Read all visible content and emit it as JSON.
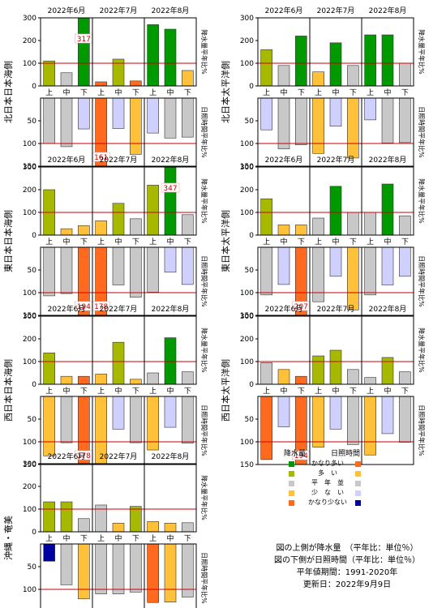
{
  "months": [
    "2022年6月",
    "2022年7月",
    "2022年8月"
  ],
  "dekads": [
    "上",
    "中",
    "下"
  ],
  "axis_labels": {
    "precip": "降水量平年比%",
    "sun": "日照時間平年比%"
  },
  "colors": {
    "much_above": "#009900",
    "above": "#a7b800",
    "normal": "#c8c8c8",
    "below": "#ffc13a",
    "much_below": "#ff6a1e",
    "sun_much_below": "#0000a0",
    "sun_below": "#d0d0ff",
    "ref_line": "#cc0000",
    "overflow_label": "#cc0000"
  },
  "chart_data": [
    {
      "region": "北日本日本海側",
      "type": "bar",
      "categories": [
        "6月上",
        "6月中",
        "6月下",
        "7月上",
        "7月中",
        "7月下",
        "8月上",
        "8月中",
        "8月下"
      ],
      "series": [
        {
          "name": "降水量",
          "values": [
            110,
            58,
            317,
            18,
            118,
            22,
            270,
            250,
            68
          ],
          "classes": [
            "above",
            "normal",
            "much_above",
            "much_below",
            "above",
            "much_below",
            "much_above",
            "much_above",
            "below"
          ]
        },
        {
          "name": "日照時間",
          "values": [
            100,
            107,
            68,
            161,
            67,
            124,
            77,
            88,
            86
          ],
          "classes": [
            "normal",
            "normal",
            "sun_below",
            "much_below",
            "sun_below",
            "below",
            "sun_below",
            "normal",
            "normal"
          ]
        }
      ],
      "ylim_precip": [
        0,
        300
      ],
      "ylim_sun": [
        0,
        150
      ]
    },
    {
      "region": "北日本太平洋側",
      "type": "bar",
      "categories": [
        "6月上",
        "6月中",
        "6月下",
        "7月上",
        "7月中",
        "7月下",
        "8月上",
        "8月中",
        "8月下"
      ],
      "series": [
        {
          "name": "降水量",
          "values": [
            160,
            90,
            220,
            62,
            190,
            90,
            225,
            225,
            100
          ],
          "classes": [
            "above",
            "normal",
            "much_above",
            "below",
            "much_above",
            "normal",
            "much_above",
            "much_above",
            "normal"
          ]
        },
        {
          "name": "日照時間",
          "values": [
            70,
            112,
            103,
            122,
            62,
            132,
            48,
            99,
            98
          ],
          "classes": [
            "sun_below",
            "normal",
            "normal",
            "below",
            "sun_below",
            "below",
            "sun_below",
            "normal",
            "normal"
          ]
        }
      ],
      "ylim_precip": [
        0,
        300
      ],
      "ylim_sun": [
        0,
        150
      ]
    },
    {
      "region": "東日本日本海側",
      "type": "bar",
      "categories": [
        "6月上",
        "6月中",
        "6月下",
        "7月上",
        "7月中",
        "7月下",
        "8月上",
        "8月中",
        "8月下"
      ],
      "series": [
        {
          "name": "降水量",
          "values": [
            200,
            28,
            42,
            63,
            140,
            72,
            220,
            347,
            90
          ],
          "classes": [
            "above",
            "below",
            "below",
            "below",
            "above",
            "normal",
            "above",
            "much_above",
            "normal"
          ]
        },
        {
          "name": "日照時間",
          "values": [
            107,
            102,
            194,
            178,
            83,
            110,
            99,
            55,
            82
          ],
          "classes": [
            "normal",
            "normal",
            "much_below",
            "much_below",
            "normal",
            "normal",
            "normal",
            "sun_below",
            "sun_below"
          ]
        }
      ],
      "ylim_precip": [
        0,
        300
      ],
      "ylim_sun": [
        0,
        150
      ]
    },
    {
      "region": "東日本太平洋側",
      "type": "bar",
      "categories": [
        "6月上",
        "6月中",
        "6月下",
        "7月上",
        "7月中",
        "7月下",
        "8月上",
        "8月中",
        "8月下"
      ],
      "series": [
        {
          "name": "降水量",
          "values": [
            160,
            45,
            45,
            75,
            215,
            100,
            100,
            225,
            85
          ],
          "classes": [
            "above",
            "below",
            "below",
            "normal",
            "much_above",
            "normal",
            "normal",
            "much_above",
            "normal"
          ]
        },
        {
          "name": "日照時間",
          "values": [
            105,
            82,
            207,
            120,
            64,
            138,
            105,
            83,
            64
          ],
          "classes": [
            "normal",
            "sun_below",
            "much_below",
            "normal",
            "sun_below",
            "below",
            "normal",
            "sun_below",
            "sun_below"
          ]
        }
      ],
      "ylim_precip": [
        0,
        300
      ],
      "ylim_sun": [
        0,
        150
      ]
    },
    {
      "region": "西日本日本海側",
      "type": "bar",
      "categories": [
        "6月上",
        "6月中",
        "6月下",
        "7月上",
        "7月中",
        "7月下",
        "8月上",
        "8月中",
        "8月下"
      ],
      "series": [
        {
          "name": "降水量",
          "values": [
            138,
            35,
            35,
            45,
            185,
            22,
            50,
            205,
            55
          ],
          "classes": [
            "above",
            "below",
            "much_below",
            "below",
            "above",
            "below",
            "normal",
            "much_above",
            "normal"
          ]
        },
        {
          "name": "日照時間",
          "values": [
            131,
            102,
            178,
            150,
            72,
            102,
            118,
            68,
            103
          ],
          "classes": [
            "below",
            "normal",
            "much_below",
            "below",
            "sun_below",
            "normal",
            "below",
            "sun_below",
            "normal"
          ]
        }
      ],
      "ylim_precip": [
        0,
        300
      ],
      "ylim_sun": [
        0,
        150
      ]
    },
    {
      "region": "西日本太平洋側",
      "type": "bar",
      "categories": [
        "6月上",
        "6月中",
        "6月下",
        "7月上",
        "7月中",
        "7月下",
        "8月上",
        "8月中",
        "8月下"
      ],
      "series": [
        {
          "name": "降水量",
          "values": [
            95,
            65,
            35,
            125,
            150,
            65,
            30,
            118,
            55
          ],
          "classes": [
            "normal",
            "below",
            "much_below",
            "above",
            "above",
            "normal",
            "normal",
            "above",
            "normal"
          ]
        },
        {
          "name": "日照時間",
          "values": [
            139,
            67,
            194,
            112,
            72,
            106,
            129,
            82,
            101
          ],
          "classes": [
            "much_below",
            "sun_below",
            "much_below",
            "below",
            "sun_below",
            "normal",
            "below",
            "sun_below",
            "normal"
          ]
        }
      ],
      "ylim_precip": [
        0,
        300
      ],
      "ylim_sun": [
        0,
        150
      ]
    },
    {
      "region": "沖縄・奄美",
      "type": "bar",
      "categories": [
        "6月上",
        "6月中",
        "6月下",
        "7月上",
        "7月中",
        "7月下",
        "8月上",
        "8月中",
        "8月下"
      ],
      "series": [
        {
          "name": "降水量",
          "values": [
            132,
            132,
            58,
            118,
            38,
            112,
            45,
            38,
            40
          ],
          "classes": [
            "above",
            "above",
            "normal",
            "normal",
            "below",
            "above",
            "below",
            "below",
            "normal"
          ]
        },
        {
          "name": "日照時間",
          "values": [
            38,
            90,
            121,
            110,
            110,
            106,
            129,
            128,
            117
          ],
          "classes": [
            "sun_much_below",
            "normal",
            "below",
            "normal",
            "normal",
            "normal",
            "much_below",
            "below",
            "normal"
          ]
        }
      ],
      "ylim_precip": [
        0,
        300
      ],
      "ylim_sun": [
        0,
        150
      ]
    }
  ],
  "legend": {
    "header_precip": "降水量",
    "header_sun": "日照時間",
    "rows": [
      {
        "label": "かなり多い",
        "precip": "much_above",
        "sun": "much_below"
      },
      {
        "label": "多　い",
        "precip": "above",
        "sun": "below"
      },
      {
        "label": "平　年　並",
        "precip": "normal",
        "sun": "normal"
      },
      {
        "label": "少　な　い",
        "precip": "below",
        "sun": "sun_below"
      },
      {
        "label": "かなり少ない",
        "precip": "much_below",
        "sun": "sun_much_below"
      }
    ]
  },
  "notes": [
    "図の上側が降水量　（平年比：単位％）",
    "図の下側が日照時間（平年比：単位％）",
    "平年値期間：1991-2020年",
    "更新日：2022年9月9日"
  ]
}
